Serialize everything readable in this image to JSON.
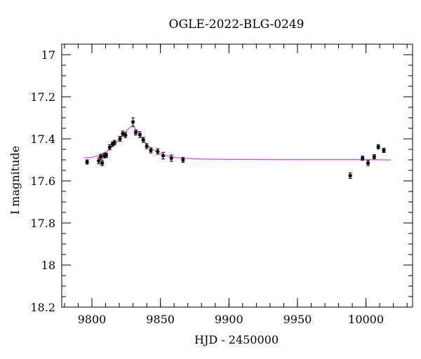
{
  "chart_data": {
    "type": "scatter",
    "title": "OGLE-2022-BLG-0249",
    "xlabel": "HJD - 2450000",
    "ylabel": "I magnitude",
    "xlim": [
      9778,
      10034
    ],
    "ylim": [
      18.2,
      16.95
    ],
    "y_inverted": true,
    "x_ticks": [
      9800,
      9850,
      9900,
      9950,
      10000
    ],
    "x_tick_labels": [
      "9800",
      "9850",
      "9900",
      "9950",
      "10000"
    ],
    "x_minor_step": 10,
    "y_ticks": [
      17,
      17.2,
      17.4,
      17.6,
      17.8,
      18,
      18.2
    ],
    "y_tick_labels": [
      "17",
      "17.2",
      "17.4",
      "17.6",
      "17.8",
      "18",
      "18.2"
    ],
    "y_minor_step": 0.05,
    "grid": false,
    "legend": "none",
    "colors": {
      "points": "#000000",
      "model": "#ee44ee",
      "frame": "#000000"
    },
    "series": [
      {
        "type": "scatter_errorbars",
        "points": [
          {
            "x": 9796.5,
            "y": 17.51,
            "err": 0.01
          },
          {
            "x": 9805.0,
            "y": 17.505,
            "err": 0.014
          },
          {
            "x": 9806.5,
            "y": 17.485,
            "err": 0.012
          },
          {
            "x": 9807.5,
            "y": 17.515,
            "err": 0.012
          },
          {
            "x": 9809.0,
            "y": 17.48,
            "err": 0.011
          },
          {
            "x": 9810.5,
            "y": 17.478,
            "err": 0.011
          },
          {
            "x": 9813.0,
            "y": 17.44,
            "err": 0.012
          },
          {
            "x": 9815.0,
            "y": 17.425,
            "err": 0.011
          },
          {
            "x": 9816.5,
            "y": 17.418,
            "err": 0.011
          },
          {
            "x": 9820.5,
            "y": 17.4,
            "err": 0.012
          },
          {
            "x": 9822.5,
            "y": 17.375,
            "err": 0.012
          },
          {
            "x": 9824.5,
            "y": 17.382,
            "err": 0.012
          },
          {
            "x": 9830.0,
            "y": 17.32,
            "err": 0.02
          },
          {
            "x": 9832.0,
            "y": 17.37,
            "err": 0.012
          },
          {
            "x": 9835.0,
            "y": 17.38,
            "err": 0.014
          },
          {
            "x": 9837.5,
            "y": 17.405,
            "err": 0.012
          },
          {
            "x": 9840.0,
            "y": 17.435,
            "err": 0.012
          },
          {
            "x": 9843.0,
            "y": 17.455,
            "err": 0.012
          },
          {
            "x": 9848.0,
            "y": 17.46,
            "err": 0.013
          },
          {
            "x": 9852.0,
            "y": 17.48,
            "err": 0.016
          },
          {
            "x": 9858.0,
            "y": 17.492,
            "err": 0.015
          },
          {
            "x": 9866.5,
            "y": 17.5,
            "err": 0.012
          },
          {
            "x": 9988.5,
            "y": 17.575,
            "err": 0.013
          },
          {
            "x": 9997.5,
            "y": 17.492,
            "err": 0.01
          },
          {
            "x": 10001.5,
            "y": 17.515,
            "err": 0.012
          },
          {
            "x": 10006.0,
            "y": 17.485,
            "err": 0.01
          },
          {
            "x": 10009.0,
            "y": 17.438,
            "err": 0.01
          },
          {
            "x": 10013.0,
            "y": 17.455,
            "err": 0.01
          }
        ]
      },
      {
        "type": "line",
        "points": [
          {
            "x": 9794,
            "y": 17.49
          },
          {
            "x": 9800,
            "y": 17.488
          },
          {
            "x": 9806,
            "y": 17.478
          },
          {
            "x": 9812,
            "y": 17.455
          },
          {
            "x": 9816,
            "y": 17.43
          },
          {
            "x": 9820,
            "y": 17.4
          },
          {
            "x": 9824,
            "y": 17.372
          },
          {
            "x": 9827,
            "y": 17.35
          },
          {
            "x": 9829,
            "y": 17.34
          },
          {
            "x": 9831,
            "y": 17.345
          },
          {
            "x": 9834,
            "y": 17.37
          },
          {
            "x": 9838,
            "y": 17.41
          },
          {
            "x": 9842,
            "y": 17.44
          },
          {
            "x": 9848,
            "y": 17.465
          },
          {
            "x": 9855,
            "y": 17.482
          },
          {
            "x": 9865,
            "y": 17.492
          },
          {
            "x": 9880,
            "y": 17.496
          },
          {
            "x": 9900,
            "y": 17.498
          },
          {
            "x": 9950,
            "y": 17.499
          },
          {
            "x": 10000,
            "y": 17.499
          },
          {
            "x": 10018,
            "y": 17.5
          }
        ]
      }
    ]
  }
}
